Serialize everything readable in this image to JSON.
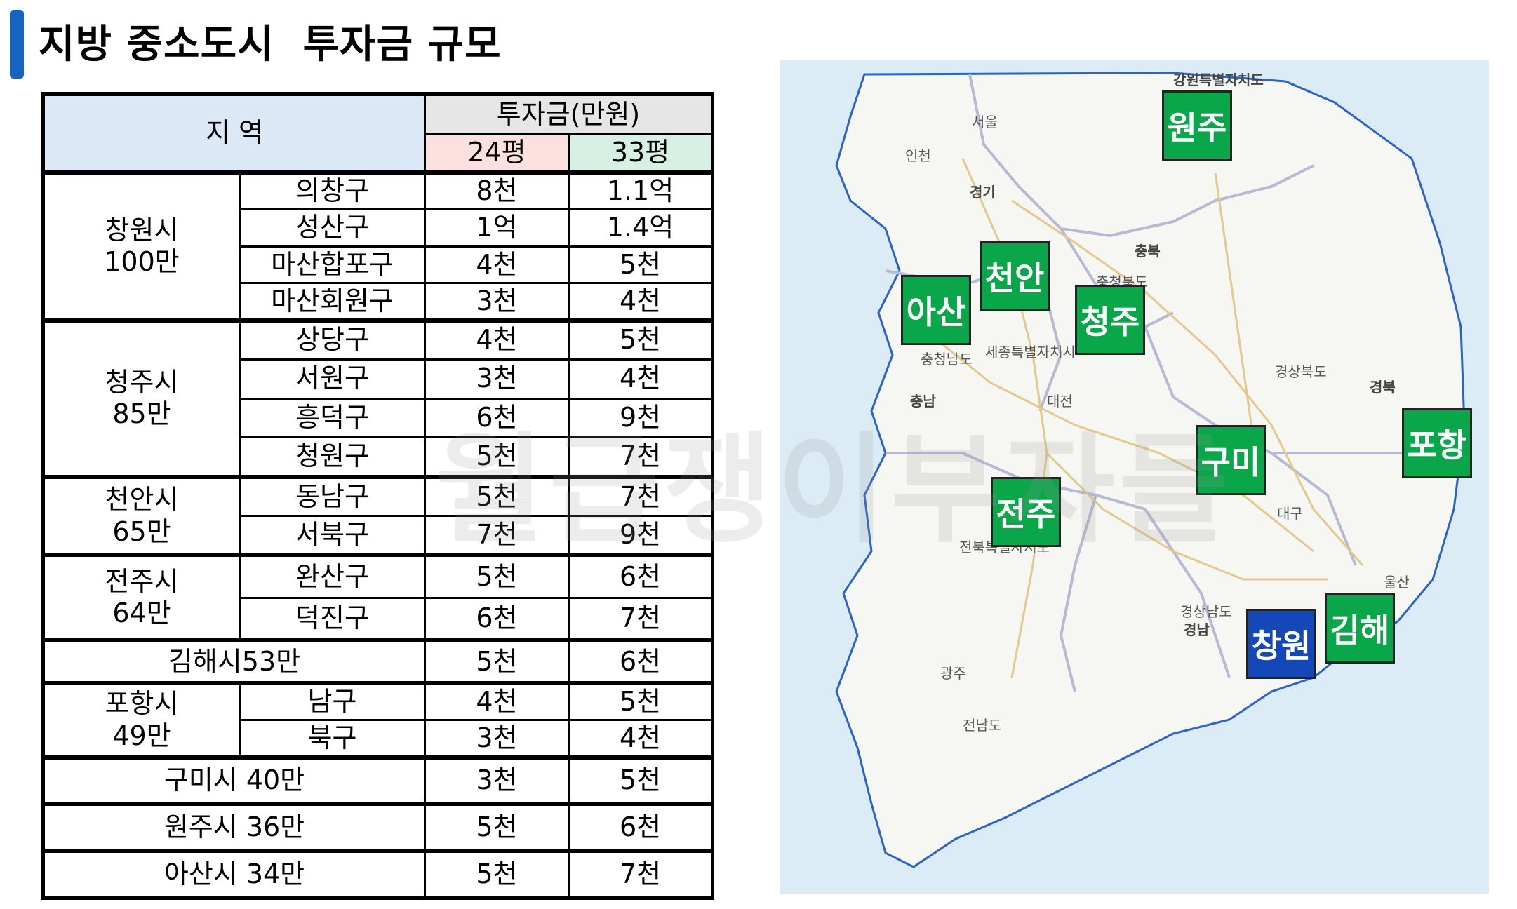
{
  "title": "지방 중소도시  투자금 규모",
  "table": {
    "header_region": "지 역",
    "header_investment": "투자금(만원)",
    "header_24": "24평",
    "header_33": "33평",
    "rows": [
      {
        "city": "창원시\n100만",
        "district": "의창구",
        "v24": "8천",
        "v33": "1.1억"
      },
      {
        "district": "성산구",
        "v24": "1억",
        "v33": "1.4억"
      },
      {
        "district": "마산합포구",
        "v24": "4천",
        "v33": "5천"
      },
      {
        "district": "마산회원구",
        "v24": "3천",
        "v33": "4천"
      },
      {
        "city": "청주시\n85만",
        "district": "상당구",
        "v24": "4천",
        "v33": "5천"
      },
      {
        "district": "서원구",
        "v24": "3천",
        "v33": "4천"
      },
      {
        "district": "흥덕구",
        "v24": "6천",
        "v33": "9천"
      },
      {
        "district": "청원구",
        "v24": "5천",
        "v33": "7천"
      },
      {
        "city": "천안시\n65만",
        "district": "동남구",
        "v24": "5천",
        "v33": "7천"
      },
      {
        "district": "서북구",
        "v24": "7천",
        "v33": "9천"
      },
      {
        "city": "전주시\n64만",
        "district": "완산구",
        "v24": "5천",
        "v33": "6천"
      },
      {
        "district": "덕진구",
        "v24": "6천",
        "v33": "7천"
      },
      {
        "full": "김해시53만",
        "v24": "5천",
        "v33": "6천"
      },
      {
        "city": "포항시\n49만",
        "district": "남구",
        "v24": "4천",
        "v33": "5천"
      },
      {
        "district": "북구",
        "v24": "3천",
        "v33": "4천"
      },
      {
        "full": "구미시 40만",
        "v24": "3천",
        "v33": "5천"
      },
      {
        "full": "원주시 36만",
        "v24": "5천",
        "v33": "6천"
      },
      {
        "full": "아산시 34만",
        "v24": "5천",
        "v33": "7천"
      }
    ]
  },
  "map": {
    "labels": {
      "wonju": "원주",
      "cheonan": "천안",
      "asan": "아산",
      "cheongju": "청주",
      "pohang": "포항",
      "gumi": "구미",
      "jeonju": "전주",
      "changwon": "창원",
      "gimhae": "김해"
    },
    "place_names": {
      "gangwon": "강원특별자치도",
      "seoul": "서울",
      "incheon": "인천",
      "gyeonggi": "경기",
      "chungbuk": "충북",
      "chungnam": "충청남도",
      "sejong": "세종특별자치시",
      "daejeon": "대전",
      "gyeongbuk": "경북",
      "gyeongsangbukdo": "경상북도",
      "daegu": "대구",
      "jeonbuk": "전북특별자치도",
      "gwangju": "광주",
      "jeonnam": "전남도",
      "gyeongsangnamdo": "경상남도",
      "ulsan": "울산",
      "chungcheongbukdo": "충청북도",
      "chungnam_short": "충남",
      "gyeongnam": "경남"
    }
  },
  "watermark": "월급쟁이부자들"
}
